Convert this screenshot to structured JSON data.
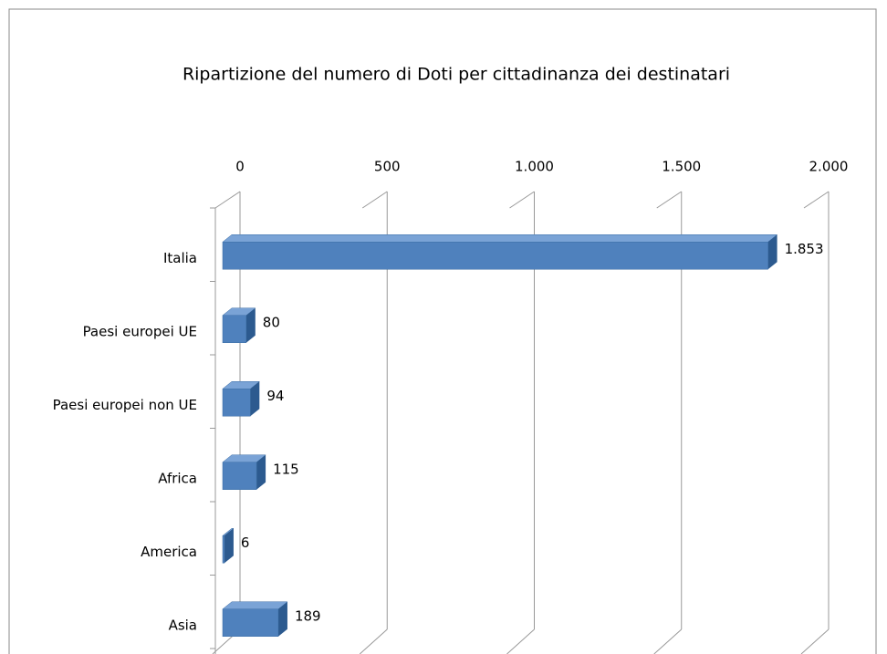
{
  "chart_data": {
    "type": "bar3d_horizontal",
    "title": "Ripartizione del numero di Doti per cittadinanza dei destinatari",
    "categories": [
      "Italia",
      "Paesi europei UE",
      "Paesi europei non UE",
      "Africa",
      "America",
      "Asia"
    ],
    "values": [
      1853,
      80,
      94,
      115,
      6,
      189
    ],
    "value_labels": [
      "1.853",
      "80",
      "94",
      "115",
      "6",
      "189"
    ],
    "color": "#4f81bd",
    "xlim": [
      0,
      2000
    ],
    "xticks": [
      0,
      500,
      {
        "value": 1000,
        "label": "1.000"
      },
      {
        "value": 1500,
        "label": "1.500"
      },
      {
        "value": 2000,
        "label": "2.000"
      }
    ],
    "grid": true
  }
}
